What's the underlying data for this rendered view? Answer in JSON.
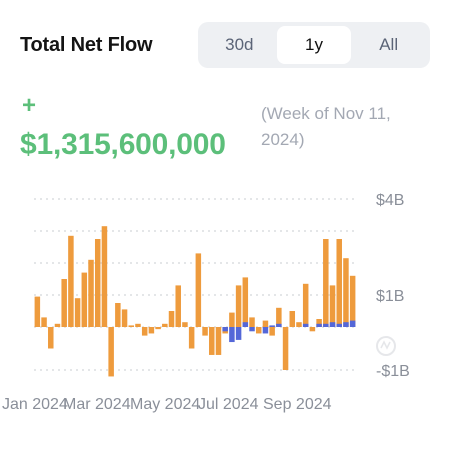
{
  "header": {
    "title": "Total Net Flow",
    "range_options": [
      "30d",
      "1y",
      "All"
    ],
    "selected_range": "1y"
  },
  "summary": {
    "sign": "+",
    "value": "$1,315,600,000",
    "period": "(Week of Nov 11, 2024)"
  },
  "colors": {
    "orange": "#ee9b3d",
    "blue": "#5467d8",
    "positive": "#5cbf7a",
    "muted": "#a3a8b3"
  },
  "chart_data": {
    "type": "bar",
    "title": "Total Net Flow",
    "ylim": [
      -1.4,
      4.1
    ],
    "y_ticks": [
      4,
      1,
      -1
    ],
    "y_tick_labels": [
      "$4B",
      "$1B",
      "-$1B"
    ],
    "x_tick_labels": [
      "Jan 2024",
      "Mar 2024",
      "May 2024",
      "Jul 2024",
      "Sep 2024"
    ],
    "grid": true,
    "series": [
      {
        "color": "#ee9b3d",
        "values": [
          0.95,
          0.3,
          -0.5,
          0.1,
          1.5,
          2.85,
          0.9,
          1.7,
          2.1,
          2.75,
          3.15,
          -1.15,
          0.75,
          0.55,
          0.05,
          0.1,
          -0.2,
          -0.15,
          -0.05,
          0.1,
          0.5,
          1.3,
          0.15,
          -0.5,
          2.3,
          -0.2,
          -0.65,
          -0.65,
          -0.15,
          0.45,
          1.3,
          1.55,
          0.3,
          -0.15,
          0.2,
          -0.2,
          0.6,
          -1.0,
          0.5,
          0.15,
          1.35,
          -0.1,
          0.25,
          2.75,
          1.3,
          2.75,
          2.15,
          1.6
        ]
      },
      {
        "color": "#5467d8",
        "values": [
          0,
          0,
          0,
          0,
          0,
          0,
          0,
          0,
          0,
          0,
          0,
          0,
          0,
          0,
          0,
          0,
          0,
          0,
          0,
          0,
          0,
          0,
          0,
          0,
          0,
          0,
          0,
          0,
          -0.1,
          -0.35,
          -0.3,
          0.15,
          -0.1,
          0,
          -0.15,
          0.05,
          0.1,
          0,
          0,
          0,
          0.1,
          0,
          0.1,
          0.1,
          0.15,
          0.1,
          0.15,
          0.2
        ]
      }
    ]
  }
}
